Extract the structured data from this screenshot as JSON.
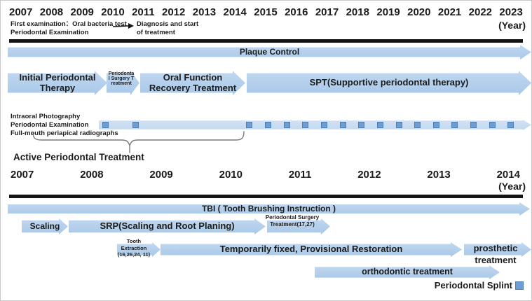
{
  "top_timeline": {
    "years": [
      "2007",
      "2008",
      "2009",
      "2010",
      "2011",
      "2012",
      "2013",
      "2014",
      "2015",
      "2016",
      "2017",
      "2018",
      "2019",
      "2020",
      "2021",
      "2022",
      "2023"
    ],
    "year_unit": "(Year)",
    "annotations": {
      "first_exam": "First examination：Oral bacteria test",
      "periodontal_exam": "Periodontal Examination",
      "diagnosis": "Diagnosis and start\nof treatment"
    },
    "bars": {
      "plaque_control": "Plaque Control",
      "initial_therapy": "Initial Periodontal\nTherapy",
      "perio_surgery": "Periodontal Surgery Treatment",
      "oral_function": "Oral Function\nRecovery Treatment",
      "spt": "SPT(Supportive periodontal therapy)"
    },
    "exam_track": {
      "labels": [
        "Intraoral Photography",
        "Periodontal Examination",
        "Full-mouth periapical radiographs"
      ],
      "marker_positions": [
        145,
        188,
        350,
        377,
        404,
        430,
        457,
        484,
        510,
        537,
        564,
        590,
        617,
        643,
        670,
        697,
        723
      ]
    },
    "active_treatment_label": "Active Periodontal Treatment"
  },
  "bottom_timeline": {
    "years": [
      "2007",
      "2008",
      "2009",
      "2010",
      "2011",
      "2012",
      "2013",
      "2014"
    ],
    "year_unit": "(Year)",
    "bars": {
      "tbi": "TBI ( Tooth Brushing Instruction )",
      "scaling": "Scaling",
      "srp": "SRP(Scaling and Root Planing)",
      "perio_surgery_1727": "Periodontal Surgery Treatment(17,27)",
      "tooth_extraction": "Tooth Extraction (16,26,24, 11)",
      "temp_fixed": "Temporarily fixed, Provisional Restoration",
      "prosthetic": "prosthetic treatment",
      "orthodontic": "orthodontic treatment",
      "splint": "Periodontal Splint"
    }
  },
  "colors": {
    "arrow_blue": "#a8c8e8",
    "track_blue": "#c3d8ee",
    "marker_blue": "#6f9dd1",
    "marker_border": "#4d7fba",
    "axis_black": "#141414"
  }
}
